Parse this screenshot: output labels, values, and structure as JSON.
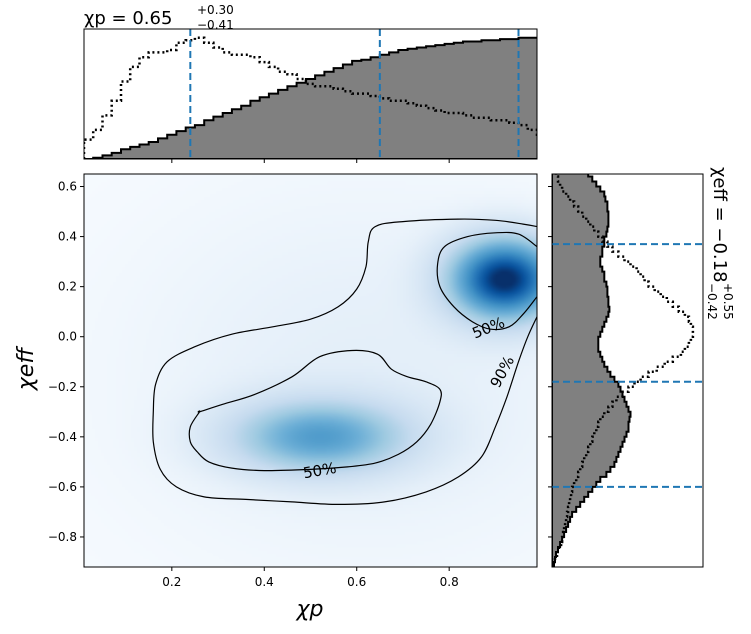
{
  "chart_data": [
    {
      "panel": "top-marginal",
      "type": "histogram",
      "title_main": "χp = 0.65",
      "title_plus": "+0.30",
      "title_minus": "−0.41",
      "xlim": [
        0.01,
        0.99
      ],
      "bin_edges_start": 0.01,
      "bin_width": 0.02,
      "series": [
        {
          "name": "",
          "style": "filled-gray",
          "values": [
            0,
            0.5,
            1.5,
            2.5,
            4,
            5,
            6,
            7,
            8.5,
            10,
            11.5,
            13,
            14,
            16,
            17.5,
            19,
            20.5,
            22,
            24,
            25.5,
            27,
            28.5,
            30,
            31.5,
            33,
            34.5,
            36,
            37.5,
            39,
            40.5,
            41,
            42,
            43,
            44,
            45,
            45.5,
            46,
            46.5,
            47,
            47.5,
            48,
            48.5,
            48.5,
            49,
            49,
            49.5,
            49.5,
            50,
            50,
            50
          ]
        },
        {
          "name": "",
          "style": "dotted",
          "values": [
            8,
            12,
            18,
            24,
            32,
            38,
            42,
            44,
            44,
            45,
            48,
            49,
            50,
            48,
            46,
            44,
            43,
            43,
            42,
            40,
            38,
            36,
            35,
            33,
            31,
            30,
            30,
            29,
            28,
            27,
            27,
            26,
            25,
            24,
            24,
            23,
            22,
            21,
            20,
            19,
            19,
            18,
            17,
            17,
            16,
            16,
            15,
            14,
            12,
            10
          ]
        }
      ],
      "vlines": [
        0.24,
        0.65,
        0.95
      ],
      "colors": {
        "fill": "#808080",
        "vline": "#1f77b4"
      }
    },
    {
      "panel": "main-density",
      "type": "heatmap",
      "xlabel": "χp",
      "ylabel": "χeff",
      "xlim": [
        0.01,
        0.99
      ],
      "ylim": [
        -0.92,
        0.65
      ],
      "xticks": [
        "0.2",
        "0.4",
        "0.6",
        "0.8"
      ],
      "yticks": [
        "0.6",
        "0.4",
        "0.2",
        "0.0",
        "−0.2",
        "−0.4",
        "−0.6",
        "−0.8"
      ],
      "density_peaks": [
        {
          "x": 0.92,
          "y": 0.23,
          "sx": 0.08,
          "sy": 0.11,
          "w": 1.0
        },
        {
          "x": 0.52,
          "y": -0.4,
          "sx": 0.13,
          "sy": 0.1,
          "w": 0.55
        }
      ],
      "contour_labels": [
        {
          "text": "50%",
          "x": 0.52,
          "y": -0.535,
          "angle": -10
        },
        {
          "text": "50%",
          "x": 0.885,
          "y": 0.035,
          "angle": -22
        },
        {
          "text": "90%",
          "x": 0.915,
          "y": -0.14,
          "angle": -62
        }
      ],
      "contour_90": [
        [
          0.99,
          0.44
        ],
        [
          0.96,
          0.45
        ],
        [
          0.9,
          0.465
        ],
        [
          0.82,
          0.47
        ],
        [
          0.7,
          0.46
        ],
        [
          0.64,
          0.44
        ],
        [
          0.625,
          0.38
        ],
        [
          0.62,
          0.28
        ],
        [
          0.6,
          0.19
        ],
        [
          0.56,
          0.12
        ],
        [
          0.5,
          0.07
        ],
        [
          0.42,
          0.04
        ],
        [
          0.33,
          0.01
        ],
        [
          0.25,
          -0.04
        ],
        [
          0.19,
          -0.1
        ],
        [
          0.165,
          -0.19
        ],
        [
          0.16,
          -0.3
        ],
        [
          0.16,
          -0.42
        ],
        [
          0.175,
          -0.53
        ],
        [
          0.21,
          -0.6
        ],
        [
          0.27,
          -0.64
        ],
        [
          0.36,
          -0.65
        ],
        [
          0.46,
          -0.66
        ],
        [
          0.56,
          -0.67
        ],
        [
          0.66,
          -0.66
        ],
        [
          0.75,
          -0.62
        ],
        [
          0.82,
          -0.56
        ],
        [
          0.87,
          -0.48
        ],
        [
          0.9,
          -0.36
        ],
        [
          0.925,
          -0.24
        ],
        [
          0.95,
          -0.1
        ],
        [
          0.97,
          0.0
        ],
        [
          0.99,
          0.08
        ]
      ],
      "contour_50a": [
        [
          0.99,
          0.36
        ],
        [
          0.95,
          0.41
        ],
        [
          0.9,
          0.415
        ],
        [
          0.84,
          0.4
        ],
        [
          0.79,
          0.36
        ],
        [
          0.775,
          0.29
        ],
        [
          0.78,
          0.2
        ],
        [
          0.81,
          0.12
        ],
        [
          0.85,
          0.06
        ],
        [
          0.89,
          0.03
        ],
        [
          0.93,
          0.04
        ],
        [
          0.96,
          0.09
        ],
        [
          0.99,
          0.16
        ]
      ],
      "contour_50b": [
        [
          0.26,
          -0.3
        ],
        [
          0.31,
          -0.27
        ],
        [
          0.38,
          -0.23
        ],
        [
          0.46,
          -0.16
        ],
        [
          0.52,
          -0.08
        ],
        [
          0.59,
          -0.055
        ],
        [
          0.645,
          -0.07
        ],
        [
          0.675,
          -0.13
        ],
        [
          0.71,
          -0.16
        ],
        [
          0.75,
          -0.18
        ],
        [
          0.78,
          -0.21
        ],
        [
          0.78,
          -0.26
        ],
        [
          0.76,
          -0.35
        ],
        [
          0.73,
          -0.42
        ],
        [
          0.69,
          -0.47
        ],
        [
          0.64,
          -0.505
        ],
        [
          0.58,
          -0.52
        ],
        [
          0.5,
          -0.53
        ],
        [
          0.4,
          -0.535
        ],
        [
          0.33,
          -0.525
        ],
        [
          0.28,
          -0.5
        ],
        [
          0.255,
          -0.46
        ],
        [
          0.24,
          -0.42
        ],
        [
          0.24,
          -0.36
        ],
        [
          0.26,
          -0.3
        ]
      ]
    },
    {
      "panel": "right-marginal",
      "type": "histogram",
      "orientation": "horizontal",
      "title_main": "χeff = −0.18",
      "title_plus": "+0.55",
      "title_minus": "−0.42",
      "ylim": [
        -0.92,
        0.65
      ],
      "bin_edges_start": -0.92,
      "bin_width": 0.02,
      "series": [
        {
          "name": "",
          "style": "filled-gray",
          "values": [
            2,
            3,
            4,
            6,
            8,
            10,
            12,
            14,
            16,
            18,
            20,
            24,
            28,
            32,
            36,
            40,
            44,
            48,
            54,
            58,
            62,
            64,
            66,
            68,
            70,
            72,
            74,
            76,
            76,
            77,
            78,
            76,
            74,
            72,
            70,
            68,
            66,
            62,
            58,
            55,
            52,
            50,
            48,
            46,
            46,
            46,
            48,
            50,
            52,
            54,
            56,
            57,
            56,
            56,
            55,
            55,
            54,
            52,
            52,
            50,
            48,
            48,
            50,
            50,
            52,
            52,
            54,
            55,
            56,
            56,
            56,
            55,
            55,
            53,
            52,
            48,
            44,
            40,
            36,
            30
          ]
        },
        {
          "name": "",
          "style": "dotted",
          "values": [
            2,
            3,
            5,
            7,
            9,
            10,
            11,
            12,
            13,
            14,
            15,
            16,
            17,
            18,
            19,
            20,
            22,
            24,
            26,
            28,
            30,
            32,
            34,
            36,
            38,
            40,
            42,
            44,
            46,
            48,
            52,
            56,
            60,
            64,
            70,
            76,
            82,
            88,
            96,
            104,
            112,
            120,
            128,
            132,
            136,
            138,
            140,
            140,
            138,
            136,
            132,
            126,
            120,
            114,
            108,
            102,
            96,
            92,
            88,
            84,
            78,
            72,
            66,
            60,
            55,
            50,
            46,
            42,
            38,
            34,
            30,
            26,
            22,
            18,
            14,
            10,
            8,
            6,
            4,
            2
          ]
        }
      ],
      "hlines": [
        -0.6,
        -0.18,
        0.37
      ],
      "colors": {
        "fill": "#808080",
        "vline": "#1f77b4"
      }
    }
  ]
}
